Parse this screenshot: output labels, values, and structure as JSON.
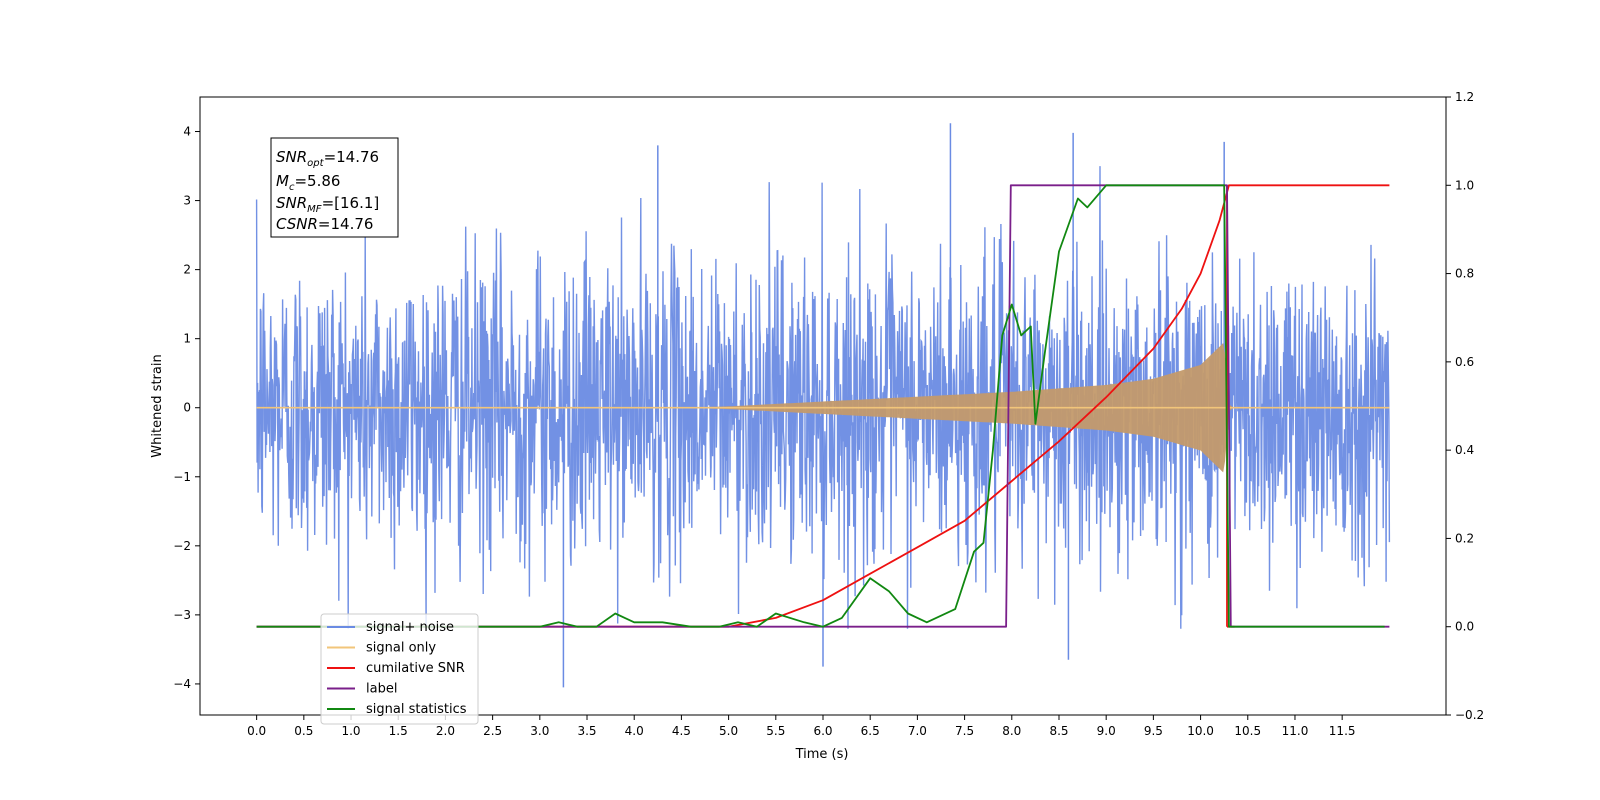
{
  "chart_data": {
    "type": "line",
    "xlabel": "Time (s)",
    "ylabel": "Whitened strain",
    "xlim": [
      -0.6,
      12.6
    ],
    "ylim": [
      -4.45,
      4.5
    ],
    "y2lim": [
      -0.2,
      1.2
    ],
    "x_ticks": [
      0.0,
      0.5,
      1.0,
      1.5,
      2.0,
      2.5,
      3.0,
      3.5,
      4.0,
      4.5,
      5.0,
      5.5,
      6.0,
      6.5,
      7.0,
      7.5,
      8.0,
      8.5,
      9.0,
      9.5,
      10.0,
      10.5,
      11.0,
      11.5
    ],
    "x_tick_labels": [
      "0.0",
      "0.5",
      "1.0",
      "1.5",
      "2.0",
      "2.5",
      "3.0",
      "3.5",
      "4.0",
      "4.5",
      "5.0",
      "5.5",
      "6.0",
      "6.5",
      "7.0",
      "7.5",
      "8.0",
      "8.5",
      "9.0",
      "9.5",
      "10.0",
      "10.5",
      "11.0",
      "11.5"
    ],
    "y_ticks": [
      -4,
      -3,
      -2,
      -1,
      0,
      1,
      2,
      3,
      4
    ],
    "y_tick_labels": [
      "−4",
      "−3",
      "−2",
      "−1",
      "0",
      "1",
      "2",
      "3",
      "4"
    ],
    "y2_ticks": [
      -0.2,
      0.0,
      0.2,
      0.4,
      0.6,
      0.8,
      1.0,
      1.2
    ],
    "y2_tick_labels": [
      "−0.2",
      "0.0",
      "0.2",
      "0.4",
      "0.6",
      "0.8",
      "1.0",
      "1.2"
    ],
    "grid": false,
    "legend_position": "lower-left",
    "annotation": {
      "snr_opt": "14.76",
      "mc": "5.86",
      "snr_mf": "[16.1]",
      "csnr": "14.76"
    },
    "series": [
      {
        "name": "signal+ noise",
        "axis": "left",
        "color": "#6a8be3",
        "kind": "noise",
        "x_range": [
          0.0,
          12.0
        ],
        "typical_range": [
          -2.5,
          2.5
        ],
        "extremes": [
          {
            "x": 3.25,
            "y": -4.05
          },
          {
            "x": 6.0,
            "y": -3.75
          },
          {
            "x": 8.6,
            "y": -3.65
          },
          {
            "x": 7.35,
            "y": 4.12
          },
          {
            "x": 8.65,
            "y": 3.98
          },
          {
            "x": 4.25,
            "y": 3.8
          },
          {
            "x": 10.25,
            "y": 3.85
          }
        ]
      },
      {
        "name": "signal only",
        "axis": "left",
        "color": "#f2c57a",
        "kind": "chirp",
        "points": [
          [
            0.0,
            0.0
          ],
          [
            4.5,
            0.0
          ],
          [
            5.0,
            0.02
          ],
          [
            6.0,
            0.09
          ],
          [
            7.0,
            0.16
          ],
          [
            8.0,
            0.23
          ],
          [
            9.0,
            0.33
          ],
          [
            9.5,
            0.42
          ],
          [
            10.0,
            0.62
          ],
          [
            10.25,
            0.95
          ],
          [
            10.3,
            0.05
          ],
          [
            10.35,
            0.0
          ],
          [
            12.0,
            0.0
          ]
        ]
      },
      {
        "name": "cumilative SNR",
        "axis": "right",
        "color": "#ee1111",
        "points": [
          [
            0.0,
            0.0
          ],
          [
            5.0,
            0.0
          ],
          [
            5.5,
            0.02
          ],
          [
            6.0,
            0.06
          ],
          [
            6.5,
            0.12
          ],
          [
            7.0,
            0.18
          ],
          [
            7.5,
            0.24
          ],
          [
            8.0,
            0.33
          ],
          [
            8.5,
            0.42
          ],
          [
            9.0,
            0.52
          ],
          [
            9.5,
            0.63
          ],
          [
            9.8,
            0.72
          ],
          [
            10.0,
            0.8
          ],
          [
            10.2,
            0.92
          ],
          [
            10.3,
            1.0
          ],
          [
            12.0,
            1.0
          ]
        ],
        "drop_at": 10.28
      },
      {
        "name": "label",
        "axis": "right",
        "color": "#7a1f8a",
        "points": [
          [
            0.0,
            0.0
          ],
          [
            7.94,
            0.0
          ],
          [
            7.99,
            1.0
          ],
          [
            10.28,
            1.0
          ],
          [
            10.32,
            0.0
          ],
          [
            12.0,
            0.0
          ]
        ]
      },
      {
        "name": "signal statistics",
        "axis": "right",
        "color": "#118811",
        "points": [
          [
            0.0,
            0.0
          ],
          [
            2.5,
            0.0
          ],
          [
            3.0,
            0.0
          ],
          [
            3.2,
            0.01
          ],
          [
            3.4,
            0.0
          ],
          [
            3.6,
            0.0
          ],
          [
            3.8,
            0.03
          ],
          [
            3.9,
            0.02
          ],
          [
            4.0,
            0.01
          ],
          [
            4.3,
            0.01
          ],
          [
            4.6,
            0.0
          ],
          [
            4.9,
            0.0
          ],
          [
            5.1,
            0.01
          ],
          [
            5.3,
            0.0
          ],
          [
            5.5,
            0.03
          ],
          [
            5.8,
            0.01
          ],
          [
            6.0,
            0.0
          ],
          [
            6.2,
            0.02
          ],
          [
            6.5,
            0.11
          ],
          [
            6.7,
            0.08
          ],
          [
            6.9,
            0.03
          ],
          [
            7.1,
            0.01
          ],
          [
            7.4,
            0.04
          ],
          [
            7.6,
            0.17
          ],
          [
            7.7,
            0.19
          ],
          [
            7.8,
            0.4
          ],
          [
            7.9,
            0.66
          ],
          [
            8.0,
            0.73
          ],
          [
            8.1,
            0.66
          ],
          [
            8.2,
            0.68
          ],
          [
            8.25,
            0.46
          ],
          [
            8.35,
            0.62
          ],
          [
            8.5,
            0.85
          ],
          [
            8.7,
            0.97
          ],
          [
            8.8,
            0.95
          ],
          [
            9.0,
            1.0
          ],
          [
            10.25,
            1.0
          ],
          [
            10.3,
            0.0
          ],
          [
            11.95,
            0.0
          ]
        ]
      }
    ]
  }
}
